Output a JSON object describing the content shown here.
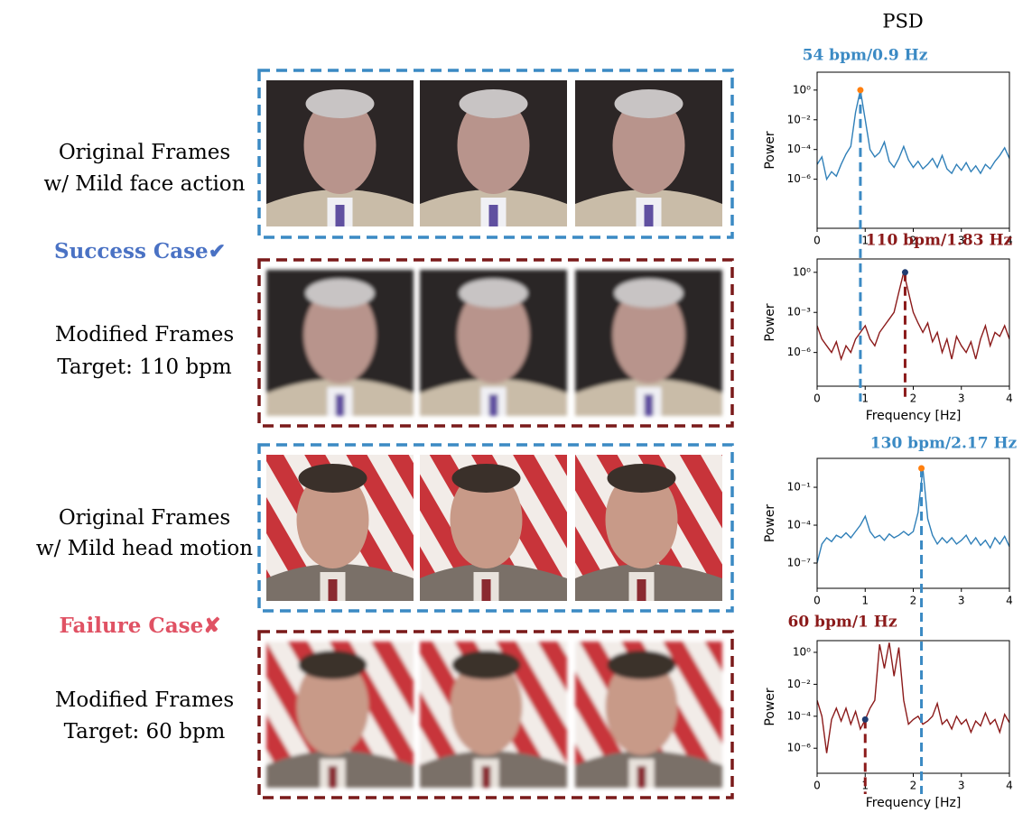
{
  "figure_title": "PSD",
  "rows": [
    {
      "line1": "Original Frames",
      "line2": "w/ Mild face action"
    },
    {
      "line1": "Modified Frames",
      "line2": "Target: 110 bpm"
    },
    {
      "line1": "Original Frames",
      "line2": "w/ Mild head motion"
    },
    {
      "line1": "Modified Frames",
      "line2": "Target: 60 bpm"
    }
  ],
  "cases": [
    {
      "text": "Success Case",
      "icon": "✔",
      "color": "#4a72c4"
    },
    {
      "text": "Failure Case",
      "icon": "✘",
      "color": "#e05264"
    }
  ],
  "chart_data": [
    {
      "type": "line",
      "log_y": true,
      "annotation": "54 bpm/0.9 Hz",
      "annotation_color": "#3b8ac4",
      "ylabel": "Power",
      "xlim": [
        0,
        4
      ],
      "xticks": [
        0,
        1,
        2,
        3,
        4
      ],
      "ylim": [
        5e-10,
        16
      ],
      "yticks": [
        {
          "value": 1,
          "label": "10⁰"
        },
        {
          "value": 0.01,
          "label": "10⁻²"
        },
        {
          "value": 0.0001,
          "label": "10⁻⁴"
        },
        {
          "value": 1e-06,
          "label": "10⁻⁶"
        }
      ],
      "x": [
        0,
        0.1,
        0.2,
        0.3,
        0.4,
        0.5,
        0.6,
        0.7,
        0.8,
        0.9,
        1,
        1.1,
        1.2,
        1.3,
        1.4,
        1.5,
        1.6,
        1.7,
        1.8,
        1.9,
        2,
        2.1,
        2.2,
        2.3,
        2.4,
        2.5,
        2.6,
        2.7,
        2.8,
        2.9,
        3,
        3.1,
        3.2,
        3.3,
        3.4,
        3.5,
        3.6,
        3.7,
        3.8,
        3.9,
        4
      ],
      "series": [
        {
          "color": "#2f7fb8",
          "values": [
            1e-05,
            3.2e-05,
            1e-06,
            3.2e-06,
            1.6e-06,
            1e-05,
            5e-05,
            0.00016,
            0.032,
            1,
            0.01,
            0.0001,
            3.2e-05,
            6.3e-05,
            0.00032,
            1.6e-05,
            6.3e-06,
            2.5e-05,
            0.00016,
            2e-05,
            6.3e-06,
            1.6e-05,
            5e-06,
            1e-05,
            2.5e-05,
            6.3e-06,
            4e-05,
            5e-06,
            2.5e-06,
            1e-05,
            4e-06,
            1.3e-05,
            3.2e-06,
            8e-06,
            2.5e-06,
            1e-05,
            5e-06,
            1.6e-05,
            4e-05,
            0.00013,
            2.5e-05
          ]
        }
      ],
      "marker": {
        "x": 0.9,
        "y": 1,
        "color": "#ff7f0e"
      },
      "guide_color": "#3b8ac4"
    },
    {
      "type": "line",
      "log_y": true,
      "annotation": "110 bpm/1.83 Hz",
      "annotation_color": "#8b1a1a",
      "ylabel": "Power",
      "xlabel": "Frequency [Hz]",
      "xlim": [
        0,
        4
      ],
      "xticks": [
        0,
        1,
        2,
        3,
        4
      ],
      "ylim": [
        3e-09,
        10
      ],
      "yticks": [
        {
          "value": 1,
          "label": "10⁰"
        },
        {
          "value": 0.001,
          "label": "10⁻³"
        },
        {
          "value": 1e-06,
          "label": "10⁻⁶"
        }
      ],
      "x": [
        0,
        0.1,
        0.2,
        0.3,
        0.4,
        0.5,
        0.6,
        0.7,
        0.8,
        0.9,
        1,
        1.1,
        1.2,
        1.3,
        1.4,
        1.5,
        1.6,
        1.7,
        1.8,
        1.9,
        2,
        2.1,
        2.2,
        2.3,
        2.4,
        2.5,
        2.6,
        2.7,
        2.8,
        2.9,
        3,
        3.1,
        3.2,
        3.3,
        3.4,
        3.5,
        3.6,
        3.7,
        3.8,
        3.9,
        4
      ],
      "series": [
        {
          "color": "#8b1a1a",
          "values": [
            0.0001,
            1e-05,
            3.2e-06,
            1e-06,
            6.3e-06,
            3.2e-07,
            3.2e-06,
            1e-06,
            1e-05,
            3.2e-05,
            0.0001,
            1e-05,
            3.2e-06,
            3.2e-05,
            0.0001,
            0.00032,
            0.001,
            0.032,
            1,
            0.032,
            0.001,
            0.00016,
            3.2e-05,
            0.00016,
            6.3e-06,
            3.2e-05,
            1e-06,
            1e-05,
            3.2e-07,
            1.6e-05,
            3.2e-06,
            1e-06,
            6.3e-06,
            3.2e-07,
            1e-05,
            0.0001,
            3.2e-06,
            3.2e-05,
            1.6e-05,
            0.0001,
            1e-05
          ]
        }
      ],
      "marker": {
        "x": 1.83,
        "y": 1,
        "color": "#1f3b70"
      },
      "guide_color": "#8b1a1a"
    },
    {
      "type": "line",
      "log_y": true,
      "annotation": "130 bpm/2.17 Hz",
      "annotation_color": "#3b8ac4",
      "ylabel": "Power",
      "xlim": [
        0,
        4
      ],
      "xticks": [
        0,
        1,
        2,
        3,
        4
      ],
      "ylim": [
        1e-09,
        19.5
      ],
      "yticks": [
        {
          "value": 0.1,
          "label": "10⁻¹"
        },
        {
          "value": 0.0001,
          "label": "10⁻⁴"
        },
        {
          "value": 1e-07,
          "label": "10⁻⁷"
        }
      ],
      "x": [
        0,
        0.1,
        0.2,
        0.3,
        0.4,
        0.5,
        0.6,
        0.7,
        0.8,
        0.9,
        1,
        1.1,
        1.2,
        1.3,
        1.4,
        1.5,
        1.6,
        1.7,
        1.8,
        1.9,
        2,
        2.1,
        2.2,
        2.3,
        2.4,
        2.5,
        2.6,
        2.7,
        2.8,
        2.9,
        3,
        3.1,
        3.2,
        3.3,
        3.4,
        3.5,
        3.6,
        3.7,
        3.8,
        3.9,
        4
      ],
      "series": [
        {
          "color": "#2f7fb8",
          "values": [
            1e-07,
            3.2e-06,
            1e-05,
            5e-06,
            1.6e-05,
            1e-05,
            2.5e-05,
            1e-05,
            3.2e-05,
            0.0001,
            0.0005,
            3.2e-05,
            1e-05,
            1.6e-05,
            6.3e-06,
            2e-05,
            1e-05,
            1.6e-05,
            3.2e-05,
            1.6e-05,
            3.2e-05,
            0.001,
            3.2,
            0.00032,
            1.6e-05,
            3.2e-06,
            1e-05,
            4e-06,
            1e-05,
            3.2e-06,
            6.3e-06,
            1.6e-05,
            3.2e-06,
            1e-05,
            2.5e-06,
            6.3e-06,
            1.6e-06,
            1e-05,
            3.2e-06,
            1.3e-05,
            2e-06
          ]
        }
      ],
      "marker": {
        "x": 2.17,
        "y": 3.2,
        "color": "#ff7f0e"
      },
      "guide_color": "#3b8ac4"
    },
    {
      "type": "line",
      "log_y": true,
      "annotation": "60 bpm/1 Hz",
      "annotation_color": "#8b1a1a",
      "ylabel": "Power",
      "xlabel": "Frequency [Hz]",
      "xlim": [
        0,
        4
      ],
      "xticks": [
        0,
        1,
        2,
        3,
        4
      ],
      "ylim": [
        2.7e-08,
        5.4
      ],
      "yticks": [
        {
          "value": 1,
          "label": "10⁰"
        },
        {
          "value": 0.01,
          "label": "10⁻²"
        },
        {
          "value": 0.0001,
          "label": "10⁻⁴"
        },
        {
          "value": 1e-06,
          "label": "10⁻⁶"
        }
      ],
      "x": [
        0,
        0.1,
        0.2,
        0.3,
        0.4,
        0.5,
        0.6,
        0.7,
        0.8,
        0.9,
        1,
        1.1,
        1.2,
        1.3,
        1.4,
        1.5,
        1.6,
        1.7,
        1.8,
        1.9,
        2,
        2.1,
        2.2,
        2.3,
        2.4,
        2.5,
        2.6,
        2.7,
        2.8,
        2.9,
        3,
        3.1,
        3.2,
        3.3,
        3.4,
        3.5,
        3.6,
        3.7,
        3.8,
        3.9,
        4
      ],
      "series": [
        {
          "color": "#8b1a1a",
          "values": [
            0.001,
            0.0001,
            5e-07,
            6.3e-05,
            0.00032,
            5e-05,
            0.00032,
            3.2e-05,
            0.0002,
            1.6e-05,
            6.3e-05,
            0.00032,
            0.001,
            3.2,
            0.1,
            4,
            0.032,
            2,
            0.001,
            3.2e-05,
            6.3e-05,
            0.0001,
            3.2e-05,
            5e-05,
            0.0001,
            0.00063,
            3.2e-05,
            6.3e-05,
            1.6e-05,
            0.0001,
            3.2e-05,
            6.3e-05,
            1e-05,
            5e-05,
            2.5e-05,
            0.00016,
            3.2e-05,
            6.3e-05,
            1e-05,
            0.00013,
            4e-05
          ]
        }
      ],
      "marker": {
        "x": 1,
        "y": 6.3e-05,
        "color": "#1f3b70"
      },
      "guide_color": "#8b1a1a"
    }
  ]
}
